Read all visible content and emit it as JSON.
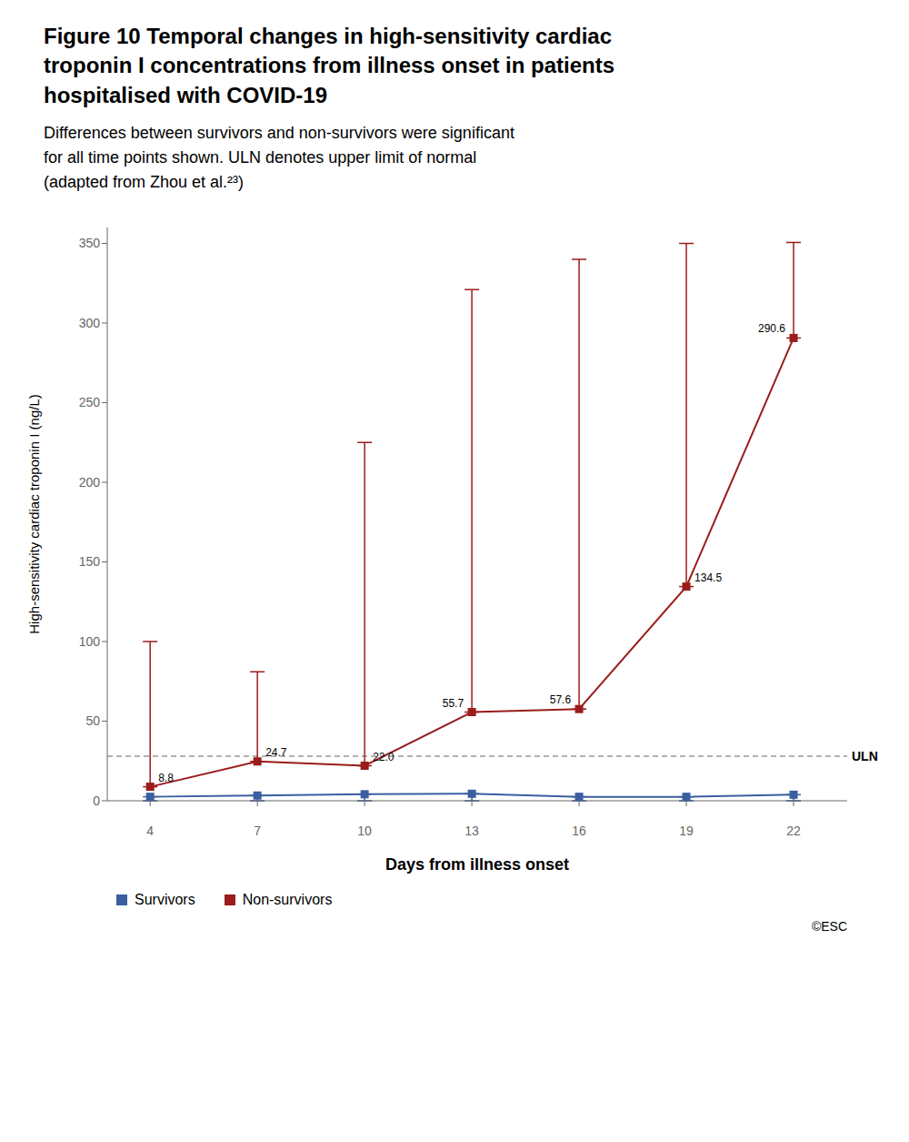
{
  "chart_data": {
    "type": "line",
    "title": "Figure 10 Temporal changes in high-sensitivity cardiac\ntroponin I concentrations from illness onset in patients\nhospitalised with COVID-19",
    "subtitle": "Differences between survivors and non-survivors were significant\nfor all time points shown. ULN denotes upper limit of normal\n(adapted from Zhou et al.²³)",
    "x": [
      4,
      7,
      10,
      13,
      16,
      19,
      22
    ],
    "xlim": [
      2.8,
      23.5
    ],
    "xticks": [
      4,
      7,
      10,
      13,
      16,
      19,
      22
    ],
    "ylim": [
      0,
      360
    ],
    "yticks": [
      0,
      50,
      100,
      150,
      200,
      250,
      300,
      350
    ],
    "xlabel": "Days from illness onset",
    "ylabel": "High-sensitivity cardiac troponin I (ng/L)",
    "series": [
      {
        "name": "Survivors",
        "color": "#3A5FA0",
        "marker": "square",
        "values": [
          2.5,
          3.3,
          4.1,
          4.4,
          2.5,
          2.5,
          3.8
        ],
        "yerr_low": [
          2.5,
          3.3,
          4.1,
          4.4,
          2.5,
          2.5,
          3.8
        ],
        "yerr_high": [
          0,
          0,
          0,
          0,
          0,
          0,
          0
        ]
      },
      {
        "name": "Non-survivors",
        "color": "#9B1C1C",
        "marker": "square",
        "values": [
          8.8,
          24.7,
          22.0,
          55.7,
          57.6,
          134.5,
          290.6
        ],
        "value_labels": [
          "8.8",
          "24.7",
          "22.0",
          "55.7",
          "57.6",
          "134.5",
          "290.6"
        ],
        "yerr_low": [
          0,
          0,
          0,
          0,
          0,
          0,
          0
        ],
        "yerr_high": [
          91.2,
          56.3,
          203.0,
          265.3,
          282.4,
          215.5,
          60.0
        ]
      }
    ],
    "annotations": [
      {
        "type": "hline",
        "y": 28,
        "text": "ULN",
        "color": "#999999",
        "line_style": "dashed"
      },
      {
        "type": "text",
        "text": "©ESC"
      }
    ],
    "data_labels": true,
    "legend": "bottom",
    "grid": false
  }
}
